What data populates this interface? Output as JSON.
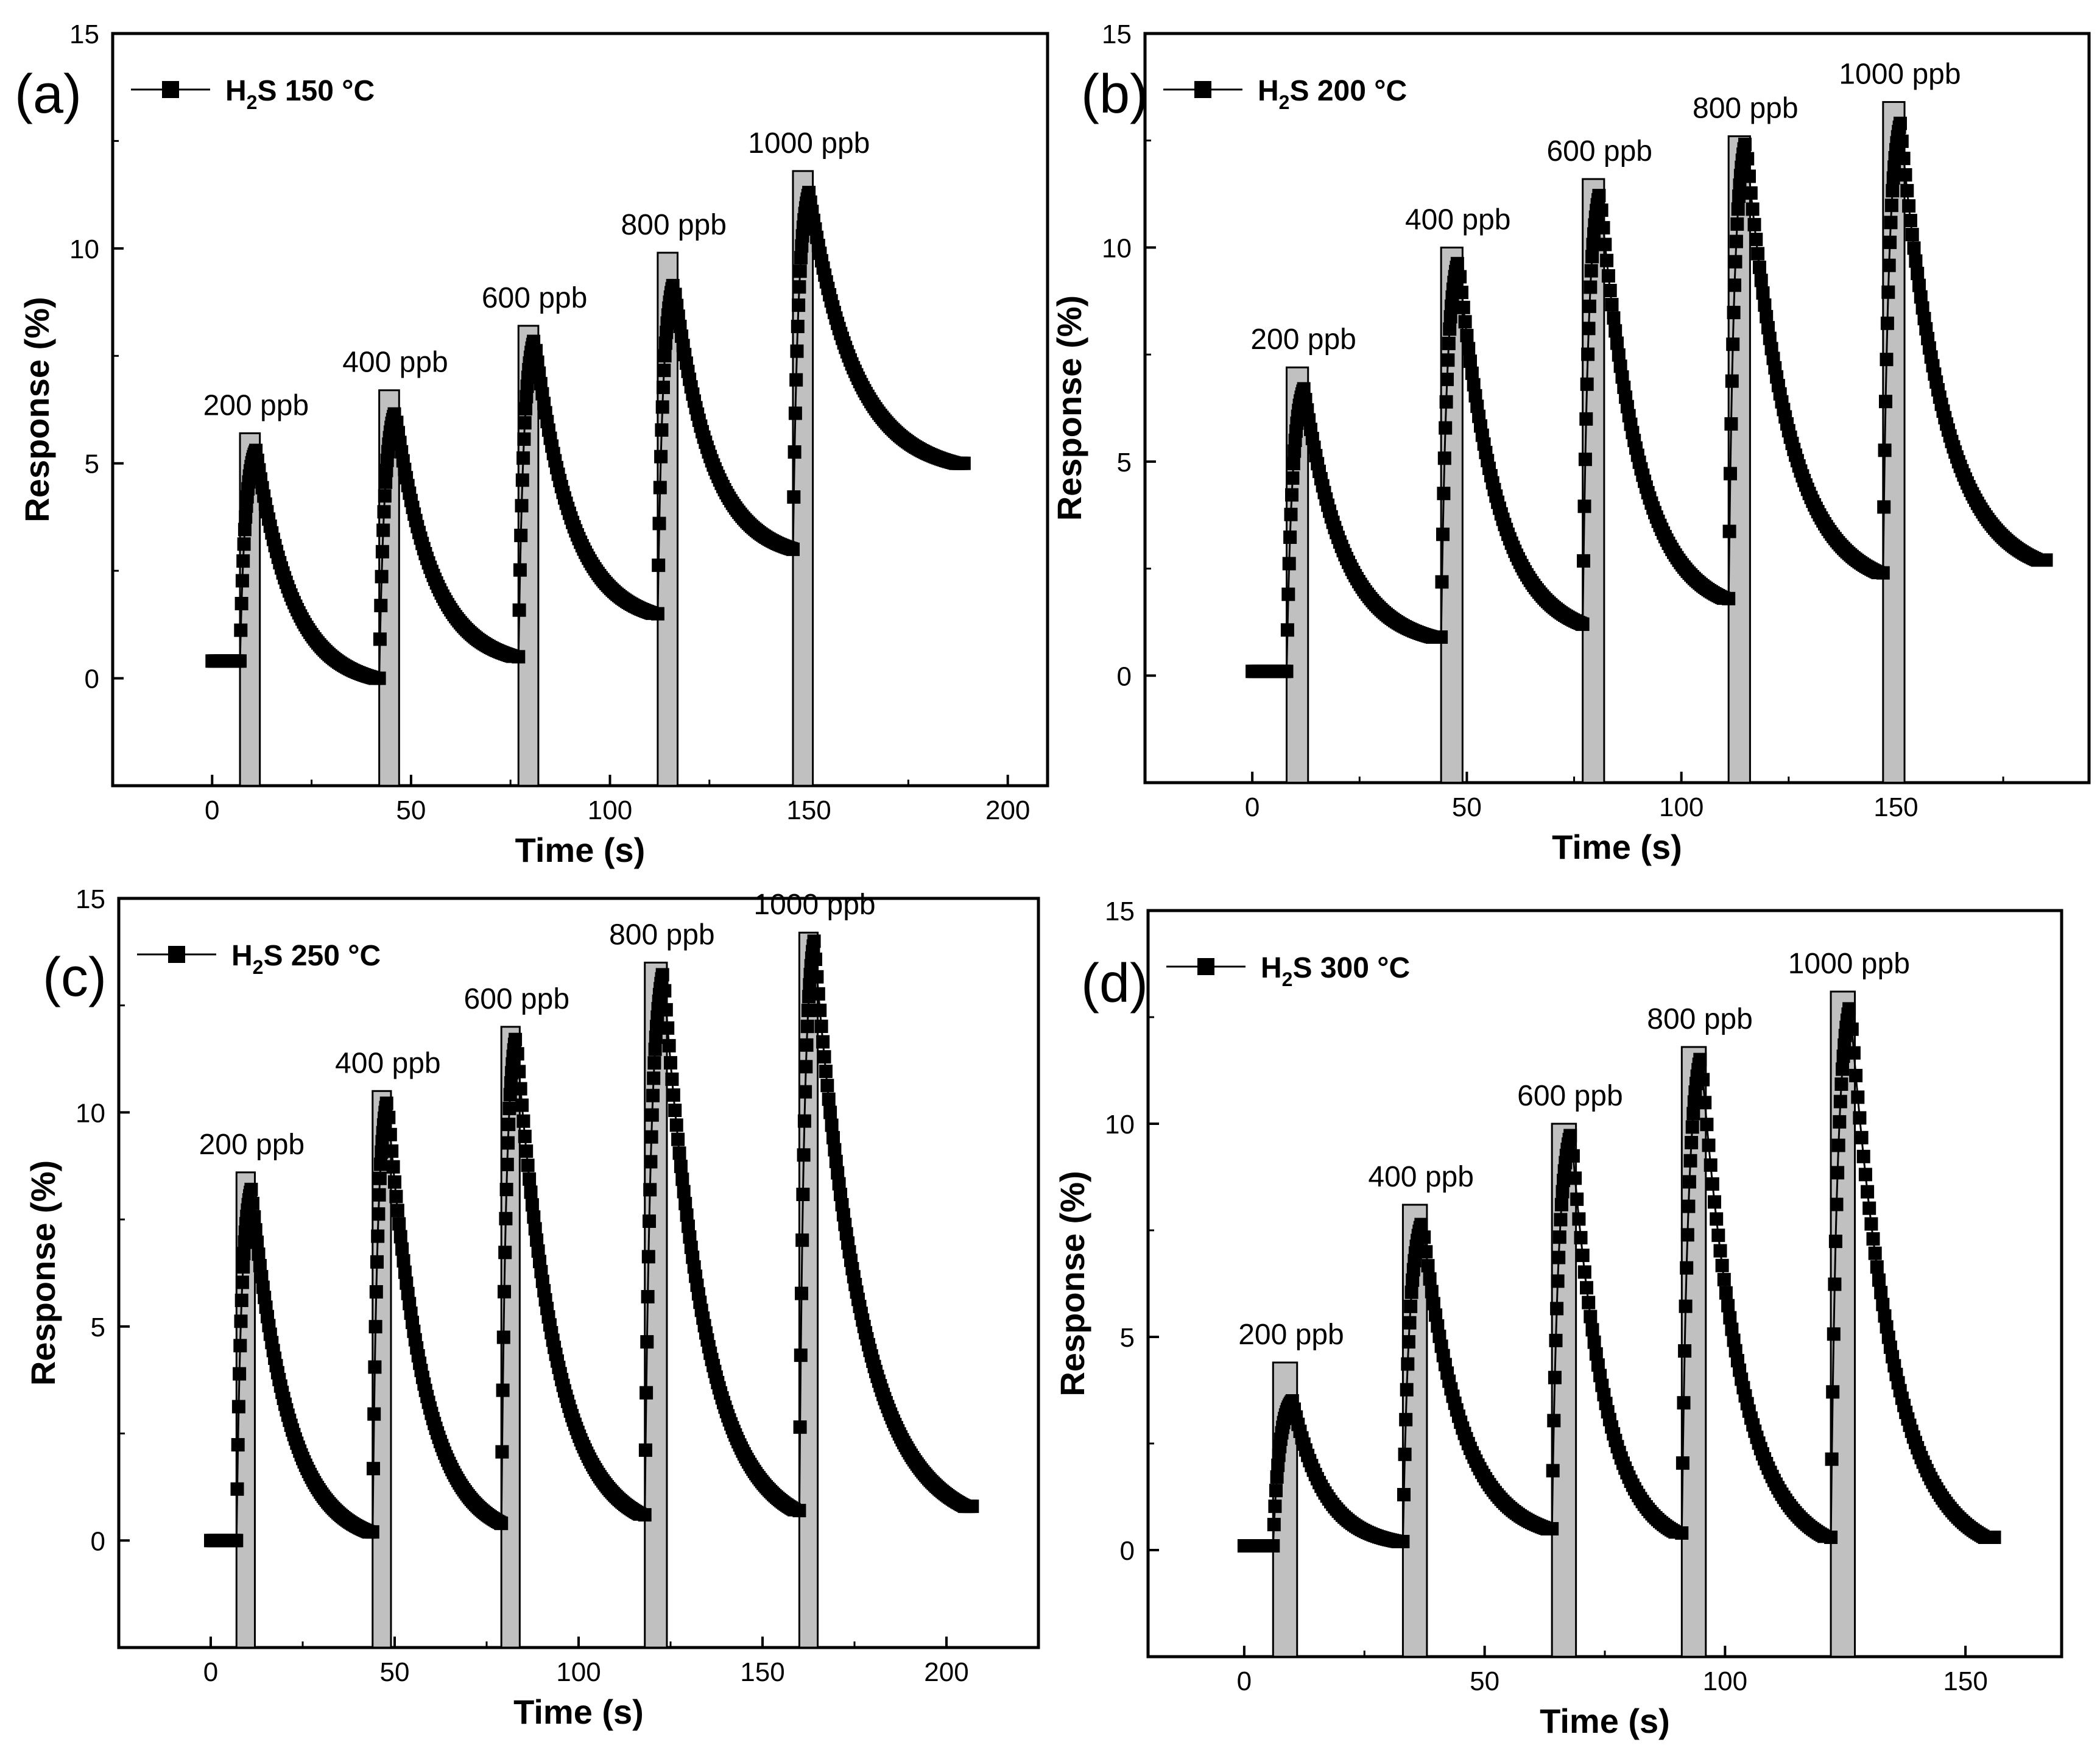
{
  "chart_data": [
    {
      "type": "line",
      "panel_label": "(a)",
      "legend": "H₂S 150 °C",
      "legend_parts": {
        "gas": "H",
        "sub": "2",
        "rest": "S 150 °C"
      },
      "xlabel": "Time (s)",
      "ylabel": "Response (%)",
      "xlim": [
        -25,
        210
      ],
      "ylim": [
        -2.5,
        15
      ],
      "xticks": [
        0,
        50,
        100,
        150,
        200
      ],
      "yticks": [
        0,
        5,
        10,
        15
      ],
      "baseline": 0.4,
      "pulses": [
        {
          "label": "200 ppb",
          "start": 7,
          "end": 12,
          "bar_top": 5.7,
          "peak": 5.3,
          "recover_end": 41,
          "end_value": 0.0
        },
        {
          "label": "400 ppb",
          "start": 42,
          "end": 47,
          "bar_top": 6.7,
          "peak": 6.2,
          "recover_end": 76,
          "end_value": 0.5
        },
        {
          "label": "600 ppb",
          "start": 77,
          "end": 82,
          "bar_top": 8.2,
          "peak": 7.9,
          "recover_end": 111,
          "end_value": 1.5
        },
        {
          "label": "800 ppb",
          "start": 112,
          "end": 117,
          "bar_top": 9.9,
          "peak": 9.2,
          "recover_end": 146,
          "end_value": 3.0
        },
        {
          "label": "1000 ppb",
          "start": 146,
          "end": 151,
          "bar_top": 11.8,
          "peak": 11.3,
          "recover_end": 187,
          "end_value": 5.0
        }
      ]
    },
    {
      "type": "line",
      "panel_label": "(b)",
      "legend": "H₂S 200 °C",
      "legend_parts": {
        "gas": "H",
        "sub": "2",
        "rest": "S 200 °C"
      },
      "xlabel": "Time (s)",
      "ylabel": "Response (%)",
      "xlim": [
        -25,
        195
      ],
      "ylim": [
        -2.5,
        15
      ],
      "xticks": [
        0,
        50,
        100,
        150
      ],
      "yticks": [
        0,
        5,
        10,
        15
      ],
      "baseline": 0.1,
      "pulses": [
        {
          "label": "200 ppb",
          "start": 8,
          "end": 13,
          "bar_top": 7.2,
          "peak": 6.7,
          "recover_end": 42,
          "end_value": 0.9
        },
        {
          "label": "400 ppb",
          "start": 44,
          "end": 49,
          "bar_top": 10.0,
          "peak": 9.7,
          "recover_end": 77,
          "end_value": 1.2
        },
        {
          "label": "600 ppb",
          "start": 77,
          "end": 82,
          "bar_top": 11.6,
          "peak": 11.3,
          "recover_end": 110,
          "end_value": 1.8
        },
        {
          "label": "800 ppb",
          "start": 111,
          "end": 116,
          "bar_top": 12.6,
          "peak": 12.5,
          "recover_end": 146,
          "end_value": 2.4
        },
        {
          "label": "1000 ppb",
          "start": 147,
          "end": 152,
          "bar_top": 13.4,
          "peak": 12.9,
          "recover_end": 183,
          "end_value": 2.7
        }
      ]
    },
    {
      "type": "line",
      "panel_label": "(c)",
      "legend": "H₂S 250 °C",
      "legend_parts": {
        "gas": "H",
        "sub": "2",
        "rest": "S 250 °C"
      },
      "xlabel": "Time (s)",
      "ylabel": "Response (%)",
      "xlim": [
        -25,
        225
      ],
      "ylim": [
        -2.5,
        15
      ],
      "xticks": [
        0,
        50,
        100,
        150,
        200
      ],
      "yticks": [
        0,
        5,
        10,
        15
      ],
      "baseline": 0.0,
      "pulses": [
        {
          "label": "200 ppb",
          "start": 7,
          "end": 12,
          "bar_top": 8.6,
          "peak": 8.2,
          "recover_end": 43,
          "end_value": 0.2
        },
        {
          "label": "400 ppb",
          "start": 44,
          "end": 49,
          "bar_top": 10.5,
          "peak": 10.3,
          "recover_end": 79,
          "end_value": 0.4
        },
        {
          "label": "600 ppb",
          "start": 79,
          "end": 84,
          "bar_top": 12.0,
          "peak": 11.8,
          "recover_end": 117,
          "end_value": 0.6
        },
        {
          "label": "800 ppb",
          "start": 118,
          "end": 124,
          "bar_top": 13.5,
          "peak": 13.3,
          "recover_end": 159,
          "end_value": 0.7
        },
        {
          "label": "1000 ppb",
          "start": 160,
          "end": 165,
          "bar_top": 14.2,
          "peak": 14.0,
          "recover_end": 205,
          "end_value": 0.8
        }
      ]
    },
    {
      "type": "line",
      "panel_label": "(d)",
      "legend": "H₂S 300 °C",
      "legend_parts": {
        "gas": "H",
        "sub": "2",
        "rest": "S 300 °C"
      },
      "xlabel": "Time (s)",
      "ylabel": "Response (%)",
      "xlim": [
        -20,
        170
      ],
      "ylim": [
        -2.5,
        15
      ],
      "xticks": [
        0,
        50,
        100,
        150
      ],
      "yticks": [
        0,
        5,
        10,
        15
      ],
      "baseline": 0.1,
      "pulses": [
        {
          "label": "200 ppb",
          "start": 6,
          "end": 11,
          "bar_top": 4.4,
          "peak": 3.5,
          "recover_end": 32,
          "end_value": 0.2
        },
        {
          "label": "400 ppb",
          "start": 33,
          "end": 38,
          "bar_top": 8.1,
          "peak": 7.7,
          "recover_end": 63,
          "end_value": 0.5
        },
        {
          "label": "600 ppb",
          "start": 64,
          "end": 69,
          "bar_top": 10.0,
          "peak": 9.8,
          "recover_end": 90,
          "end_value": 0.4
        },
        {
          "label": "800 ppb",
          "start": 91,
          "end": 96,
          "bar_top": 11.8,
          "peak": 11.6,
          "recover_end": 121,
          "end_value": 0.3
        },
        {
          "label": "1000 ppb",
          "start": 122,
          "end": 127,
          "bar_top": 13.1,
          "peak": 12.8,
          "recover_end": 154,
          "end_value": 0.3
        }
      ]
    }
  ]
}
